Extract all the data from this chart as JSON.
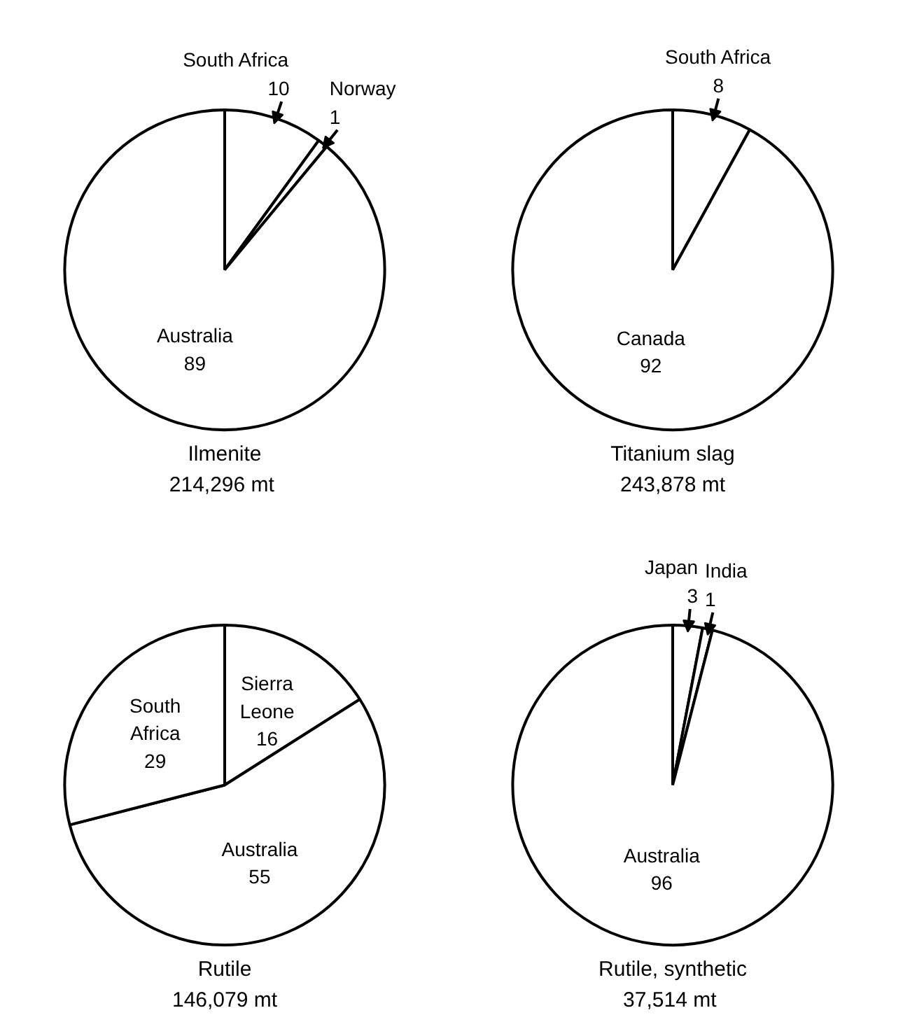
{
  "chart_data": [
    {
      "type": "pie",
      "title": "Ilmenite",
      "subtitle": "214,296  mt",
      "categories": [
        "South Africa",
        "Norway",
        "Australia"
      ],
      "values": [
        10,
        1,
        89
      ],
      "colors": [
        "#ffffff",
        "#ffffff",
        "#ffffff"
      ],
      "data_labels": true
    },
    {
      "type": "pie",
      "title": "Titanium slag",
      "subtitle": "243,878 mt",
      "categories": [
        "South Africa",
        "Canada"
      ],
      "values": [
        8,
        92
      ],
      "colors": [
        "#ffffff",
        "#ffffff"
      ],
      "data_labels": true
    },
    {
      "type": "pie",
      "title": "Rutile",
      "subtitle": "146,079 mt",
      "categories": [
        "Sierra\nLeone",
        "Australia",
        "South\nAfrica"
      ],
      "values": [
        16,
        55,
        29
      ],
      "colors": [
        "#ffffff",
        "#ffffff",
        "#ffffff"
      ],
      "data_labels": true
    },
    {
      "type": "pie",
      "title": "Rutile, synthetic",
      "subtitle": "37,514  mt",
      "categories": [
        "Japan",
        "India",
        "Australia"
      ],
      "values": [
        3,
        1,
        96
      ],
      "colors": [
        "#ffffff",
        "#ffffff",
        "#ffffff"
      ],
      "data_labels": true
    }
  ]
}
